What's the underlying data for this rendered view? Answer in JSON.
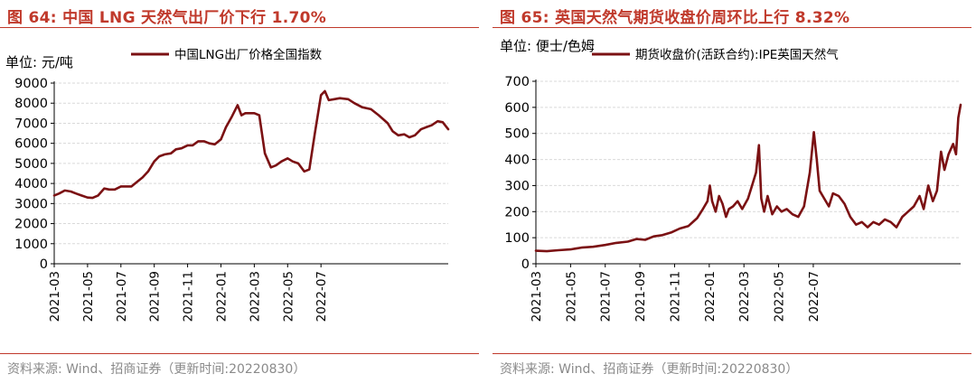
{
  "charts": [
    {
      "title": "图 64:  中国 LNG 天然气出厂价下行 1.70%",
      "source": "资料来源:  Wind、招商证券（更新时间:20220830）"
    },
    {
      "title": "图 65:  英国天然气期货收盘价周环比上行 8.32%",
      "source": "资料来源:  Wind、招商证券（更新时间:20220830）"
    }
  ],
  "colors": {
    "accent": "#c0392b",
    "series": "#7b1113",
    "grid": "#d9d9d9"
  },
  "chart_data": [
    {
      "type": "line",
      "title": "图 64:  中国 LNG 天然气出厂价下行 1.70%",
      "unit_label": "单位:  元/吨",
      "xlabel": "",
      "ylabel": "",
      "x_tick_labels": [
        "2021-03",
        "2021-05",
        "2021-07",
        "2021-09",
        "2021-11",
        "2022-01",
        "2022-03",
        "2022-05",
        "2022-07"
      ],
      "y_ticks": [
        0,
        1000,
        2000,
        3000,
        4000,
        5000,
        6000,
        7000,
        8000,
        9000
      ],
      "ylim": [
        0,
        9000
      ],
      "grid": true,
      "legend_position": "top",
      "series": [
        {
          "name": "中国LNG出厂价格全国指数",
          "color": "#7b1113",
          "points": [
            [
              "2021-03-01",
              3400
            ],
            [
              "2021-03-10",
              3500
            ],
            [
              "2021-03-20",
              3650
            ],
            [
              "2021-04-01",
              3600
            ],
            [
              "2021-04-10",
              3500
            ],
            [
              "2021-04-20",
              3400
            ],
            [
              "2021-05-01",
              3300
            ],
            [
              "2021-05-10",
              3280
            ],
            [
              "2021-05-20",
              3400
            ],
            [
              "2021-06-01",
              3750
            ],
            [
              "2021-06-10",
              3700
            ],
            [
              "2021-06-20",
              3700
            ],
            [
              "2021-07-01",
              3850
            ],
            [
              "2021-07-10",
              3850
            ],
            [
              "2021-07-20",
              3850
            ],
            [
              "2021-08-01",
              4100
            ],
            [
              "2021-08-10",
              4300
            ],
            [
              "2021-08-20",
              4600
            ],
            [
              "2021-09-01",
              5100
            ],
            [
              "2021-09-10",
              5350
            ],
            [
              "2021-09-20",
              5450
            ],
            [
              "2021-10-01",
              5500
            ],
            [
              "2021-10-10",
              5700
            ],
            [
              "2021-10-20",
              5750
            ],
            [
              "2021-11-01",
              5900
            ],
            [
              "2021-11-10",
              5900
            ],
            [
              "2021-11-20",
              6100
            ],
            [
              "2021-12-01",
              6100
            ],
            [
              "2021-12-10",
              6000
            ],
            [
              "2021-12-20",
              5950
            ],
            [
              "2022-01-01",
              6200
            ],
            [
              "2022-01-10",
              6800
            ],
            [
              "2022-01-20",
              7300
            ],
            [
              "2022-02-01",
              7900
            ],
            [
              "2022-02-08",
              7400
            ],
            [
              "2022-02-15",
              7500
            ],
            [
              "2022-03-01",
              7500
            ],
            [
              "2022-03-10",
              7400
            ],
            [
              "2022-03-20",
              5500
            ],
            [
              "2022-04-01",
              4800
            ],
            [
              "2022-04-10",
              4900
            ],
            [
              "2022-04-20",
              5100
            ],
            [
              "2022-05-01",
              5250
            ],
            [
              "2022-05-10",
              5100
            ],
            [
              "2022-05-20",
              5000
            ],
            [
              "2022-06-01",
              4600
            ],
            [
              "2022-06-10",
              4700
            ],
            [
              "2022-06-20",
              6500
            ],
            [
              "2022-07-01",
              8400
            ],
            [
              "2022-07-08",
              8600
            ],
            [
              "2022-07-15",
              8150
            ],
            [
              "2022-07-25",
              8200
            ],
            [
              "2022-08-05",
              8250
            ],
            [
              "2022-08-20",
              8200
            ],
            [
              "2022-09-01",
              8000
            ],
            [
              "2022-09-15",
              7800
            ],
            [
              "2022-10-01",
              7700
            ],
            [
              "2022-10-15",
              7400
            ],
            [
              "2022-11-01",
              7000
            ],
            [
              "2022-11-10",
              6600
            ],
            [
              "2022-11-20",
              6400
            ],
            [
              "2022-12-01",
              6450
            ],
            [
              "2022-12-10",
              6300
            ],
            [
              "2022-12-20",
              6400
            ],
            [
              "2023-01-01",
              6700
            ],
            [
              "2023-01-10",
              6800
            ],
            [
              "2023-01-20",
              6900
            ],
            [
              "2023-02-01",
              7100
            ],
            [
              "2023-02-10",
              7050
            ],
            [
              "2023-02-20",
              6700
            ]
          ]
        }
      ]
    },
    {
      "type": "line",
      "title": "图 65:  英国天然气期货收盘价周环比上行 8.32%",
      "unit_label": "单位:  便士/色姆",
      "xlabel": "",
      "ylabel": "",
      "x_tick_labels": [
        "2021-03",
        "2021-05",
        "2021-07",
        "2021-09",
        "2021-11",
        "2022-01",
        "2022-03",
        "2022-05",
        "2022-07"
      ],
      "y_ticks": [
        0,
        100,
        200,
        300,
        400,
        500,
        600,
        700
      ],
      "ylim": [
        0,
        700
      ],
      "grid": true,
      "legend_position": "top",
      "series": [
        {
          "name": "期货收盘价(活跃合约):IPE英国天然气",
          "color": "#7b1113",
          "points": [
            [
              "2021-03-01",
              50
            ],
            [
              "2021-03-20",
              48
            ],
            [
              "2021-04-10",
              52
            ],
            [
              "2021-05-01",
              55
            ],
            [
              "2021-05-20",
              62
            ],
            [
              "2021-06-10",
              65
            ],
            [
              "2021-07-01",
              72
            ],
            [
              "2021-07-20",
              80
            ],
            [
              "2021-08-10",
              85
            ],
            [
              "2021-08-25",
              95
            ],
            [
              "2021-09-10",
              92
            ],
            [
              "2021-09-25",
              105
            ],
            [
              "2021-10-10",
              110
            ],
            [
              "2021-10-25",
              120
            ],
            [
              "2021-11-10",
              135
            ],
            [
              "2021-11-25",
              145
            ],
            [
              "2021-12-10",
              175
            ],
            [
              "2021-12-20",
              210
            ],
            [
              "2021-12-28",
              240
            ],
            [
              "2022-01-02",
              300
            ],
            [
              "2022-01-06",
              240
            ],
            [
              "2022-01-12",
              200
            ],
            [
              "2022-01-18",
              260
            ],
            [
              "2022-01-24",
              230
            ],
            [
              "2022-01-30",
              180
            ],
            [
              "2022-02-05",
              210
            ],
            [
              "2022-02-12",
              220
            ],
            [
              "2022-02-20",
              240
            ],
            [
              "2022-02-28",
              210
            ],
            [
              "2022-03-08",
              250
            ],
            [
              "2022-03-15",
              300
            ],
            [
              "2022-03-22",
              350
            ],
            [
              "2022-03-27",
              455
            ],
            [
              "2022-04-01",
              250
            ],
            [
              "2022-04-06",
              200
            ],
            [
              "2022-04-12",
              260
            ],
            [
              "2022-04-20",
              190
            ],
            [
              "2022-04-28",
              220
            ],
            [
              "2022-05-06",
              200
            ],
            [
              "2022-05-15",
              210
            ],
            [
              "2022-05-25",
              190
            ],
            [
              "2022-06-05",
              180
            ],
            [
              "2022-06-15",
              220
            ],
            [
              "2022-06-25",
              350
            ],
            [
              "2022-07-02",
              505
            ],
            [
              "2022-07-07",
              400
            ],
            [
              "2022-07-12",
              280
            ],
            [
              "2022-07-20",
              250
            ],
            [
              "2022-07-28",
              220
            ],
            [
              "2022-08-05",
              270
            ],
            [
              "2022-08-15",
              260
            ],
            [
              "2022-08-25",
              230
            ],
            [
              "2022-09-05",
              180
            ],
            [
              "2022-09-15",
              150
            ],
            [
              "2022-09-25",
              160
            ],
            [
              "2022-10-05",
              140
            ],
            [
              "2022-10-15",
              160
            ],
            [
              "2022-10-25",
              150
            ],
            [
              "2022-11-05",
              170
            ],
            [
              "2022-11-15",
              160
            ],
            [
              "2022-11-25",
              140
            ],
            [
              "2022-12-05",
              180
            ],
            [
              "2022-12-15",
              200
            ],
            [
              "2022-12-25",
              220
            ],
            [
              "2023-01-05",
              260
            ],
            [
              "2023-01-12",
              210
            ],
            [
              "2023-01-20",
              300
            ],
            [
              "2023-01-28",
              240
            ],
            [
              "2023-02-05",
              280
            ],
            [
              "2023-02-12",
              430
            ],
            [
              "2023-02-18",
              360
            ],
            [
              "2023-02-25",
              420
            ],
            [
              "2023-03-03",
              460
            ],
            [
              "2023-03-08",
              420
            ],
            [
              "2023-03-12",
              560
            ],
            [
              "2023-03-16",
              610
            ]
          ]
        }
      ]
    }
  ]
}
